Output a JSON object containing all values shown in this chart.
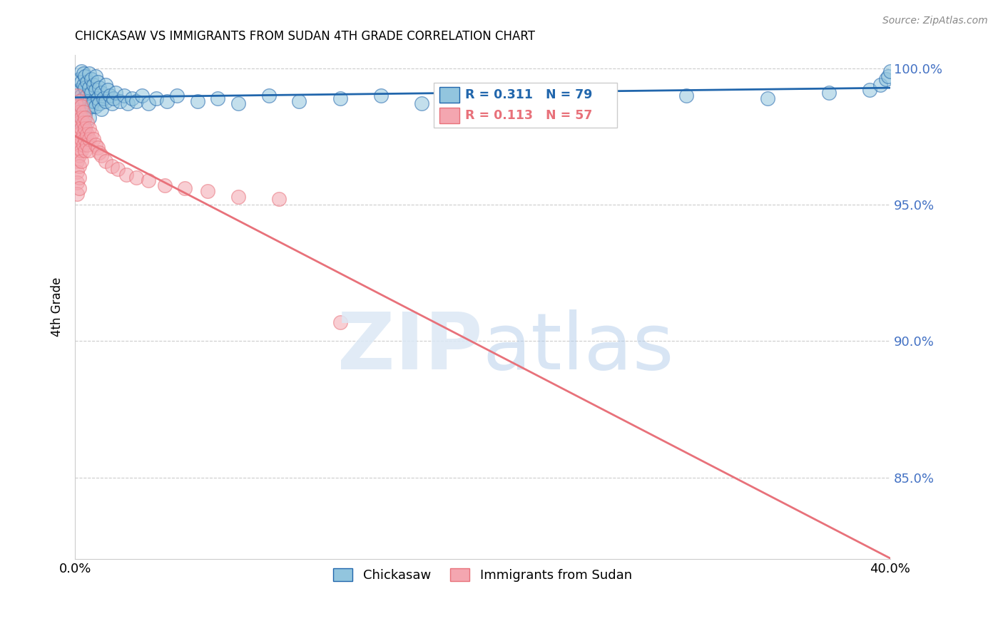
{
  "title": "CHICKASAW VS IMMIGRANTS FROM SUDAN 4TH GRADE CORRELATION CHART",
  "source": "Source: ZipAtlas.com",
  "ylabel": "4th Grade",
  "xlim": [
    0.0,
    0.4
  ],
  "ylim": [
    0.82,
    1.005
  ],
  "yticks": [
    0.85,
    0.9,
    0.95,
    1.0
  ],
  "ytick_labels": [
    "85.0%",
    "90.0%",
    "95.0%",
    "100.0%"
  ],
  "xticks": [
    0.0,
    0.05,
    0.1,
    0.15,
    0.2,
    0.25,
    0.3,
    0.35,
    0.4
  ],
  "xtick_labels": [
    "0.0%",
    "",
    "",
    "",
    "",
    "",
    "",
    "",
    "40.0%"
  ],
  "blue_R": 0.311,
  "blue_N": 79,
  "pink_R": 0.113,
  "pink_N": 57,
  "blue_color": "#92c5de",
  "pink_color": "#f4a6b0",
  "blue_line_color": "#2166ac",
  "pink_line_color": "#e8717a",
  "legend_label_blue": "Chickasaw",
  "legend_label_pink": "Immigrants from Sudan",
  "blue_scatter_x": [
    0.001,
    0.001,
    0.001,
    0.002,
    0.002,
    0.002,
    0.002,
    0.003,
    0.003,
    0.003,
    0.003,
    0.003,
    0.004,
    0.004,
    0.004,
    0.004,
    0.005,
    0.005,
    0.005,
    0.005,
    0.005,
    0.006,
    0.006,
    0.006,
    0.007,
    0.007,
    0.007,
    0.007,
    0.008,
    0.008,
    0.008,
    0.009,
    0.009,
    0.01,
    0.01,
    0.01,
    0.011,
    0.011,
    0.012,
    0.012,
    0.013,
    0.013,
    0.014,
    0.015,
    0.015,
    0.016,
    0.017,
    0.018,
    0.019,
    0.02,
    0.022,
    0.024,
    0.026,
    0.028,
    0.03,
    0.033,
    0.036,
    0.04,
    0.045,
    0.05,
    0.06,
    0.07,
    0.08,
    0.095,
    0.11,
    0.13,
    0.15,
    0.17,
    0.2,
    0.23,
    0.26,
    0.3,
    0.34,
    0.37,
    0.39,
    0.395,
    0.398,
    0.399,
    0.4
  ],
  "blue_scatter_y": [
    0.991,
    0.986,
    0.981,
    0.996,
    0.992,
    0.988,
    0.983,
    0.999,
    0.995,
    0.99,
    0.986,
    0.98,
    0.998,
    0.994,
    0.989,
    0.984,
    0.997,
    0.993,
    0.988,
    0.983,
    0.978,
    0.995,
    0.99,
    0.985,
    0.998,
    0.993,
    0.988,
    0.982,
    0.996,
    0.991,
    0.986,
    0.994,
    0.988,
    0.997,
    0.992,
    0.986,
    0.995,
    0.989,
    0.993,
    0.987,
    0.991,
    0.985,
    0.989,
    0.994,
    0.988,
    0.992,
    0.99,
    0.987,
    0.989,
    0.991,
    0.988,
    0.99,
    0.987,
    0.989,
    0.988,
    0.99,
    0.987,
    0.989,
    0.988,
    0.99,
    0.988,
    0.989,
    0.987,
    0.99,
    0.988,
    0.989,
    0.99,
    0.987,
    0.989,
    0.99,
    0.988,
    0.99,
    0.989,
    0.991,
    0.992,
    0.994,
    0.996,
    0.997,
    0.999
  ],
  "pink_scatter_x": [
    0.001,
    0.001,
    0.001,
    0.001,
    0.001,
    0.001,
    0.001,
    0.001,
    0.001,
    0.001,
    0.002,
    0.002,
    0.002,
    0.002,
    0.002,
    0.002,
    0.002,
    0.002,
    0.002,
    0.003,
    0.003,
    0.003,
    0.003,
    0.003,
    0.003,
    0.004,
    0.004,
    0.004,
    0.004,
    0.005,
    0.005,
    0.005,
    0.005,
    0.006,
    0.006,
    0.006,
    0.007,
    0.007,
    0.007,
    0.008,
    0.009,
    0.01,
    0.011,
    0.012,
    0.013,
    0.015,
    0.018,
    0.021,
    0.025,
    0.03,
    0.036,
    0.044,
    0.054,
    0.065,
    0.08,
    0.1,
    0.13
  ],
  "pink_scatter_y": [
    0.99,
    0.986,
    0.982,
    0.978,
    0.974,
    0.97,
    0.966,
    0.962,
    0.958,
    0.954,
    0.988,
    0.984,
    0.98,
    0.976,
    0.972,
    0.968,
    0.964,
    0.96,
    0.956,
    0.986,
    0.982,
    0.978,
    0.974,
    0.97,
    0.966,
    0.984,
    0.98,
    0.976,
    0.972,
    0.982,
    0.978,
    0.974,
    0.97,
    0.98,
    0.976,
    0.972,
    0.978,
    0.974,
    0.97,
    0.976,
    0.974,
    0.972,
    0.971,
    0.969,
    0.968,
    0.966,
    0.964,
    0.963,
    0.961,
    0.96,
    0.959,
    0.957,
    0.956,
    0.955,
    0.953,
    0.952,
    0.907
  ]
}
